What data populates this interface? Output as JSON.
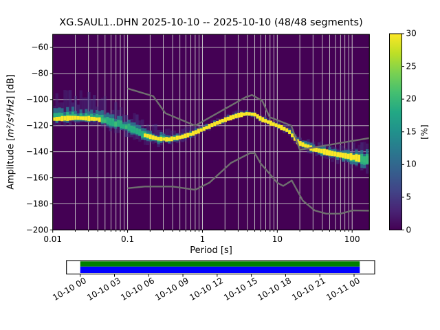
{
  "title": "XG.SAUL1..DHN   2025-10-10 -- 2025-10-10  (48/48 segments)",
  "axes": {
    "ylabel": {
      "prefix": "Amplitude [",
      "math": "m²/s⁴/Hz",
      "suffix": "] [dB]"
    },
    "xlabel": "Period [s]",
    "x_tick_labels": [
      "0.01",
      "0.1",
      "1",
      "10",
      "100"
    ],
    "x_tick_values": [
      0.01,
      0.1,
      1,
      10,
      100
    ],
    "y_tick_labels": [
      "−60",
      "−80",
      "−100",
      "−120",
      "−140",
      "−160",
      "−180",
      "−200"
    ],
    "y_tick_values": [
      -60,
      -80,
      -100,
      -120,
      -140,
      -160,
      -180,
      -200
    ]
  },
  "colorbar": {
    "label": "[%]",
    "tick_labels": [
      "0",
      "5",
      "10",
      "15",
      "20",
      "25",
      "30"
    ],
    "tick_values": [
      0,
      5,
      10,
      15,
      20,
      25,
      30
    ],
    "range": [
      0,
      30
    ]
  },
  "timeline": {
    "tick_labels": [
      "10-10 00",
      "10-10 03",
      "10-10 06",
      "10-10 09",
      "10-10 12",
      "10-10 15",
      "10-10 18",
      "10-10 21",
      "10-11 00"
    ],
    "coverage_top_color": "#008000",
    "coverage_bottom_color": "#0000ff"
  },
  "chart_data": {
    "type": "heatmap",
    "title": "XG.SAUL1..DHN   2025-10-10 -- 2025-10-10  (48/48 segments)",
    "station_id": "XG.SAUL1..DHN",
    "date_range": "2025-10-10 -- 2025-10-10",
    "segments": "48/48",
    "xlabel": "Period [s]",
    "ylabel": "Amplitude [m²/s⁴/Hz] [dB]",
    "xscale": "log",
    "xlim": [
      0.01,
      170
    ],
    "ylim": [
      -200,
      -50
    ],
    "grid": true,
    "colorbar": {
      "label": "[%]",
      "range": [
        0,
        30
      ],
      "cmap": "viridis"
    },
    "background_color": "#440154",
    "grid_color": "#c9c9c9",
    "noise_model_color": "#6f6f6f",
    "viridis_stops": [
      [
        0,
        "#440154"
      ],
      [
        0.1,
        "#482475"
      ],
      [
        0.2,
        "#414487"
      ],
      [
        0.3,
        "#355f8d"
      ],
      [
        0.4,
        "#2a788e"
      ],
      [
        0.5,
        "#21918c"
      ],
      [
        0.6,
        "#22a884"
      ],
      [
        0.7,
        "#44bf70"
      ],
      [
        0.8,
        "#7ad151"
      ],
      [
        0.9,
        "#bddf26"
      ],
      [
        1,
        "#fde725"
      ]
    ],
    "ppsd_mode_curve": {
      "log10_period": [
        -2,
        -1.7,
        -1.4,
        -1.15,
        -1.0,
        -0.82,
        -0.6,
        -0.45,
        -0.3,
        -0.15,
        0,
        0.15,
        0.3,
        0.48,
        0.6,
        0.7,
        0.78,
        0.9,
        1.0,
        1.15,
        1.28,
        1.48,
        1.7,
        2.0,
        2.2175
      ],
      "db": [
        -115,
        -114,
        -115,
        -119,
        -121.5,
        -126.5,
        -130,
        -130.5,
        -129,
        -126.5,
        -123,
        -119,
        -115.5,
        -112,
        -110.8,
        -111.5,
        -114.8,
        -117.8,
        -120,
        -124,
        -133,
        -138,
        -141,
        -144,
        -146.5
      ]
    },
    "ppsd_spread_db": {
      "log10_period": [
        -2,
        -1.5,
        -1.0,
        -0.6,
        -0.3,
        0,
        0.5,
        1.0,
        1.3,
        1.7,
        2.0,
        2.2175
      ],
      "up_outer": [
        16,
        15,
        11,
        8,
        5,
        3.5,
        3,
        3,
        4,
        6,
        9,
        11
      ],
      "up_mid": [
        6,
        6,
        5,
        4,
        2.5,
        2,
        1.8,
        1.8,
        2.5,
        3.5,
        5,
        6.5
      ],
      "core": [
        1.6,
        1.6,
        1.5,
        1.5,
        1.5,
        1.5,
        1.5,
        1.5,
        1.5,
        1.8,
        2.2,
        2.6
      ],
      "down_mid": [
        2.5,
        2.5,
        3,
        3,
        2,
        1.5,
        1.5,
        1.5,
        2,
        3,
        4.5,
        6
      ],
      "down_outer": [
        4,
        4,
        5.5,
        5,
        3,
        2.5,
        2,
        2,
        3,
        4.5,
        7,
        9
      ],
      "core_gap_log10": [
        -1.35,
        -0.78
      ]
    },
    "noise_models": {
      "nhnm": {
        "period_s": [
          0.1,
          0.22,
          0.32,
          0.8,
          3.8,
          4.6,
          6.3,
          7.9,
          15.4,
          20,
          170
        ],
        "db": [
          -91.5,
          -97.4,
          -110.5,
          -120,
          -98.1,
          -96.5,
          -101,
          -113.5,
          -120,
          -138.5,
          -129.5
        ]
      },
      "nlnm": {
        "period_s": [
          0.1,
          0.17,
          0.4,
          0.8,
          1.24,
          2.4,
          4.3,
          5,
          6,
          10,
          12,
          15.6,
          21.9,
          31.6,
          45,
          70,
          101,
          170
        ],
        "db": [
          -168,
          -166.7,
          -166.7,
          -169.2,
          -163.7,
          -148.6,
          -141.1,
          -141.1,
          -149,
          -163.8,
          -166.2,
          -162.1,
          -177.5,
          -185,
          -187.5,
          -187.5,
          -185,
          -185.2
        ]
      }
    },
    "timeline_tick_labels": [
      "10-10 00",
      "10-10 03",
      "10-10 06",
      "10-10 09",
      "10-10 12",
      "10-10 15",
      "10-10 18",
      "10-10 21",
      "10-11 00"
    ]
  }
}
